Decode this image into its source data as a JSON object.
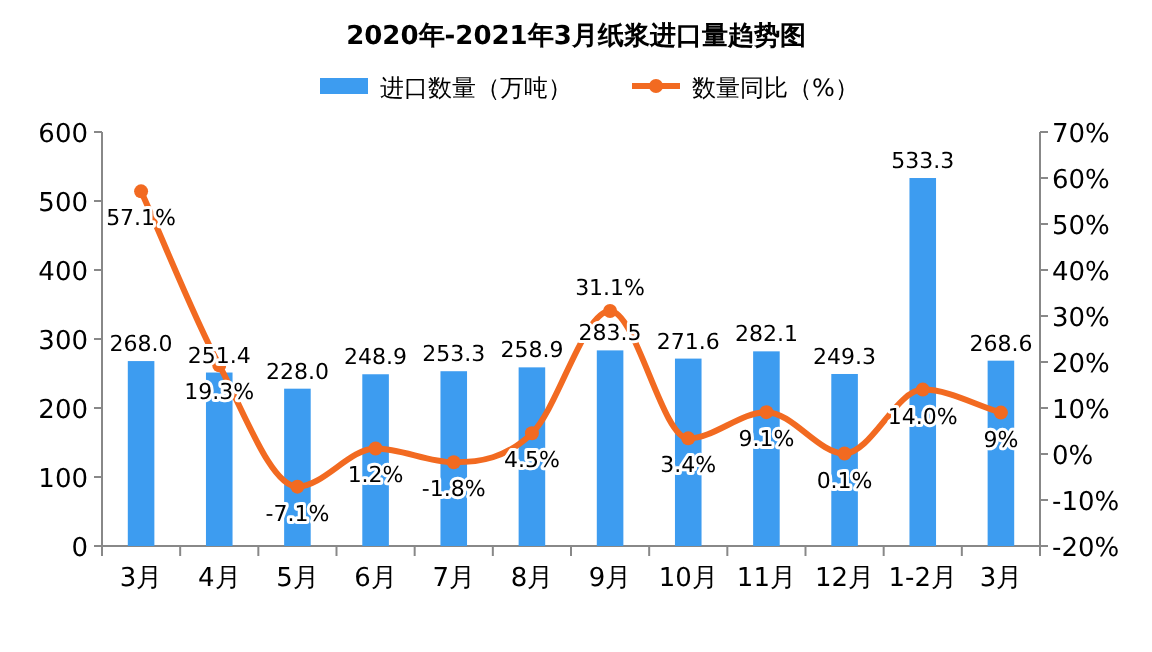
{
  "chart_data": {
    "type": "bar",
    "title": "2020年-2021年3月纸浆进口量趋势图",
    "categories": [
      "3月",
      "4月",
      "5月",
      "6月",
      "7月",
      "8月",
      "9月",
      "10月",
      "11月",
      "12月",
      "1-2月",
      "3月"
    ],
    "series": [
      {
        "name": "进口数量（万吨）",
        "color": "#3d9cf0",
        "values": [
          268.0,
          251.4,
          228.0,
          248.9,
          253.3,
          258.9,
          283.5,
          271.6,
          282.1,
          249.3,
          533.3,
          268.6
        ],
        "value_labels": [
          "268.0",
          "251.4",
          "228.0",
          "248.9",
          "253.3",
          "258.9",
          "283.5",
          "271.6",
          "282.1",
          "249.3",
          "533.3",
          "268.6"
        ]
      },
      {
        "name": "数量同比（%）",
        "type": "line",
        "axis": "y2",
        "color": "#f26a21",
        "values": [
          57.1,
          19.3,
          -7.1,
          1.2,
          -1.8,
          4.5,
          31.1,
          3.4,
          9.1,
          0.1,
          14.0,
          9
        ],
        "value_labels": [
          "57.1%",
          "19.3%",
          "-7.1%",
          "1.2%",
          "-1.8%",
          "4.5%",
          "31.1%",
          "3.4%",
          "9.1%",
          "0.1%",
          "14.0%",
          "9%"
        ]
      }
    ],
    "ylim": [
      0,
      600
    ],
    "yticks": [
      0,
      100,
      200,
      300,
      400,
      500,
      600
    ],
    "y2lim": [
      -20,
      70
    ],
    "y2ticks": [
      {
        "value": -20,
        "label": "-20%"
      },
      {
        "value": -10,
        "label": "-10%"
      },
      {
        "value": 0,
        "label": "0%"
      },
      {
        "value": 10,
        "label": "10%"
      },
      {
        "value": 20,
        "label": "20%"
      },
      {
        "value": 30,
        "label": "30%"
      },
      {
        "value": 40,
        "label": "40%"
      },
      {
        "value": 50,
        "label": "50%"
      },
      {
        "value": 60,
        "label": "60%"
      },
      {
        "value": 70,
        "label": "70%"
      }
    ],
    "legend": "top",
    "marker": "circle",
    "line_style": "solid",
    "grid": false
  }
}
